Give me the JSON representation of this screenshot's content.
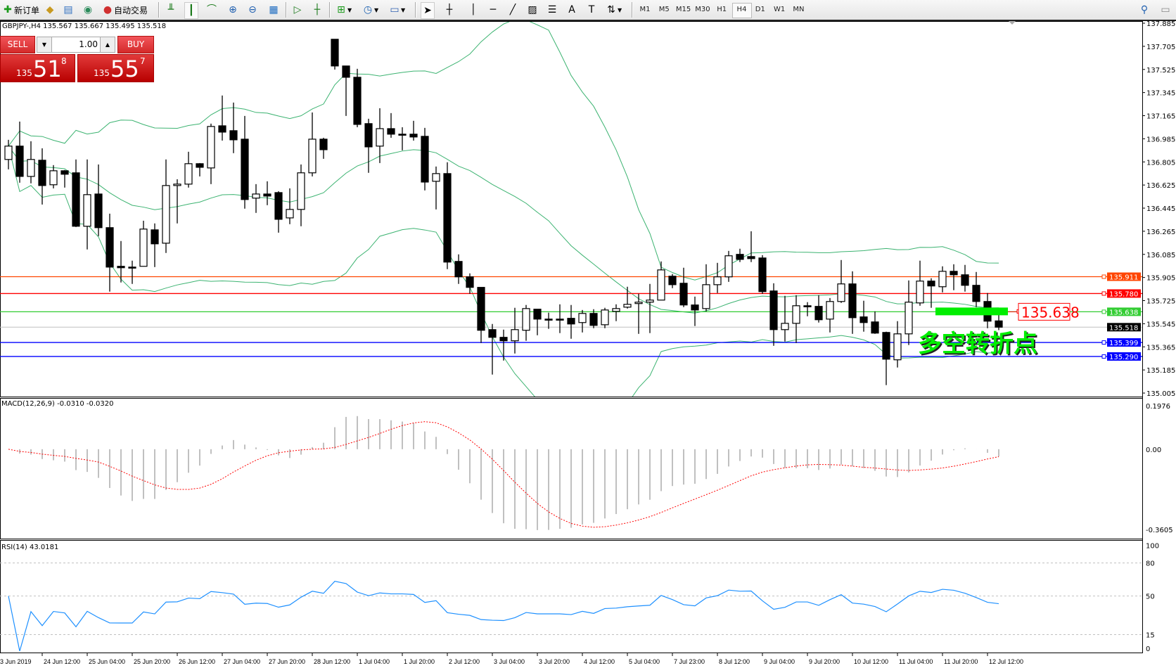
{
  "toolbar": {
    "new_order": "新订单",
    "auto_trading": "自动交易",
    "timeframes": [
      "M1",
      "M5",
      "M15",
      "M30",
      "H1",
      "H4",
      "D1",
      "W1",
      "MN"
    ],
    "active_timeframe": "H4"
  },
  "chart": {
    "symbol_header": "GBPJPY-,H4  135.567 135.667 135.495 135.518",
    "macd_label": "MACD(12,26,9) -0.0310 -0.0320",
    "rsi_label": "RSI(14) 43.0181",
    "annotation_text": "多空转折点",
    "annotation_price": "135.638",
    "annotation_color": "#00ee00"
  },
  "trade_panel": {
    "sell_label": "SELL",
    "buy_label": "BUY",
    "lot": "1.00",
    "sell_price": {
      "prefix": "135",
      "main": "51",
      "frac": "8"
    },
    "buy_price": {
      "prefix": "135",
      "main": "55",
      "frac": "7"
    }
  },
  "chart_data": {
    "type": "candlestick",
    "symbol": "GBPJPY-",
    "timeframe": "H4",
    "ylim": [
      135.005,
      137.885
    ],
    "price_ticks": [
      "137.885",
      "137.705",
      "137.525",
      "137.345",
      "137.165",
      "136.985",
      "136.805",
      "136.625",
      "136.445",
      "136.265",
      "136.085",
      "135.905",
      "135.725",
      "135.545",
      "135.365",
      "135.185",
      "135.005"
    ],
    "x_tick_labels": [
      "3 Jun 2019",
      "24 Jun 12:00",
      "25 Jun 04:00",
      "25 Jun 20:00",
      "26 Jun 12:00",
      "27 Jun 04:00",
      "27 Jun 20:00",
      "28 Jun 12:00",
      "1 Jul 04:00",
      "1 Jul 20:00",
      "2 Jul 12:00",
      "3 Jul 04:00",
      "3 Jul 20:00",
      "4 Jul 12:00",
      "5 Jul 04:00",
      "7 Jul 23:00",
      "8 Jul 12:00",
      "9 Jul 04:00",
      "9 Jul 20:00",
      "10 Jul 12:00",
      "11 Jul 04:00",
      "11 Jul 20:00",
      "12 Jul 12:00"
    ],
    "ohlc": [
      [
        136.824,
        136.977,
        136.747,
        136.928
      ],
      [
        136.928,
        137.119,
        136.643,
        136.692
      ],
      [
        136.692,
        136.966,
        136.638,
        136.824
      ],
      [
        136.818,
        136.911,
        136.473,
        136.621
      ],
      [
        136.627,
        136.78,
        136.599,
        136.736
      ],
      [
        136.736,
        136.742,
        136.605,
        136.709
      ],
      [
        136.72,
        136.824,
        136.298,
        136.304
      ],
      [
        136.304,
        136.824,
        136.123,
        136.55
      ],
      [
        136.555,
        136.785,
        136.227,
        136.293
      ],
      [
        136.293,
        136.402,
        135.795,
        135.986
      ],
      [
        135.992,
        136.189,
        135.866,
        135.981
      ],
      [
        135.986,
        136.036,
        135.855,
        135.981
      ],
      [
        135.992,
        136.347,
        135.992,
        136.282
      ],
      [
        136.276,
        136.326,
        135.986,
        136.167
      ],
      [
        136.172,
        136.824,
        136.096,
        136.621
      ],
      [
        136.621,
        136.67,
        136.326,
        136.632
      ],
      [
        136.632,
        136.884,
        136.605,
        136.791
      ],
      [
        136.791,
        136.796,
        136.692,
        136.763
      ],
      [
        136.758,
        137.103,
        136.632,
        137.081
      ],
      [
        137.086,
        137.322,
        136.971,
        137.037
      ],
      [
        137.048,
        137.267,
        136.873,
        136.977
      ],
      [
        136.982,
        137.163,
        136.441,
        136.512
      ],
      [
        136.523,
        136.632,
        136.408,
        136.555
      ],
      [
        136.555,
        136.654,
        136.468,
        136.539
      ],
      [
        136.566,
        136.577,
        136.254,
        136.358
      ],
      [
        136.369,
        136.599,
        136.32,
        136.435
      ],
      [
        136.435,
        136.785,
        136.304,
        136.72
      ],
      [
        136.72,
        137.19,
        136.692,
        136.982
      ],
      [
        136.982,
        136.993,
        136.829,
        136.9
      ],
      [
        137.76,
        137.76,
        137.524,
        137.552
      ],
      [
        137.552,
        137.552,
        137.163,
        137.464
      ],
      [
        137.464,
        137.53,
        137.075,
        137.097
      ],
      [
        137.103,
        137.141,
        136.72,
        136.922
      ],
      [
        136.928,
        137.223,
        136.796,
        137.064
      ],
      [
        137.064,
        137.185,
        136.993,
        137.021
      ],
      [
        137.021,
        137.075,
        136.895,
        137.021
      ],
      [
        137.021,
        137.125,
        136.971,
        136.999
      ],
      [
        137.004,
        137.07,
        136.583,
        136.648
      ],
      [
        136.654,
        136.769,
        136.435,
        136.714
      ],
      [
        136.714,
        136.802,
        135.97,
        136.025
      ],
      [
        136.03,
        136.085,
        135.855,
        135.91
      ],
      [
        135.91,
        135.937,
        135.778,
        135.828
      ],
      [
        135.828,
        135.828,
        135.395,
        135.494
      ],
      [
        135.499,
        135.543,
        135.149,
        135.439
      ],
      [
        135.439,
        135.499,
        135.258,
        135.412
      ],
      [
        135.412,
        135.669,
        135.313,
        135.499
      ],
      [
        135.494,
        135.691,
        135.412,
        135.663
      ],
      [
        135.658,
        135.658,
        135.455,
        135.581
      ],
      [
        135.581,
        135.631,
        135.505,
        135.581
      ],
      [
        135.581,
        135.696,
        135.472,
        135.581
      ],
      [
        135.587,
        135.691,
        135.428,
        135.543
      ],
      [
        135.554,
        135.652,
        135.477,
        135.625
      ],
      [
        135.625,
        135.658,
        135.51,
        135.532
      ],
      [
        135.537,
        135.669,
        135.51,
        135.652
      ],
      [
        135.641,
        135.696,
        135.565,
        135.663
      ],
      [
        135.674,
        135.833,
        135.663,
        135.696
      ],
      [
        135.702,
        135.778,
        135.466,
        135.713
      ],
      [
        135.713,
        135.855,
        135.472,
        135.729
      ],
      [
        135.729,
        136.03,
        135.729,
        135.964
      ],
      [
        135.915,
        135.932,
        135.822,
        135.849
      ],
      [
        135.86,
        135.981,
        135.674,
        135.691
      ],
      [
        135.691,
        135.756,
        135.527,
        135.652
      ],
      [
        135.663,
        136.008,
        135.641,
        135.849
      ],
      [
        135.849,
        136.019,
        135.784,
        135.91
      ],
      [
        135.91,
        136.112,
        135.871,
        136.074
      ],
      [
        136.085,
        136.129,
        136.025,
        136.046
      ],
      [
        136.068,
        136.265,
        136.025,
        136.052
      ],
      [
        136.057,
        136.079,
        135.778,
        135.795
      ],
      [
        135.8,
        135.86,
        135.373,
        135.499
      ],
      [
        135.499,
        135.762,
        135.406,
        135.548
      ],
      [
        135.548,
        135.767,
        135.395,
        135.685
      ],
      [
        135.685,
        135.713,
        135.603,
        135.685
      ],
      [
        135.68,
        135.767,
        135.554,
        135.576
      ],
      [
        135.581,
        135.745,
        135.477,
        135.718
      ],
      [
        135.718,
        136.041,
        135.707,
        135.855
      ],
      [
        135.855,
        135.953,
        135.466,
        135.592
      ],
      [
        135.598,
        135.724,
        135.483,
        135.554
      ],
      [
        135.559,
        135.641,
        135.466,
        135.472
      ],
      [
        135.477,
        135.483,
        135.067,
        135.269
      ],
      [
        135.264,
        135.565,
        135.204,
        135.466
      ],
      [
        135.466,
        135.882,
        135.379,
        135.713
      ],
      [
        135.707,
        136.036,
        135.685,
        135.877
      ],
      [
        135.877,
        135.899,
        135.669,
        135.839
      ],
      [
        135.833,
        135.992,
        135.789,
        135.953
      ],
      [
        135.953,
        136.008,
        135.806,
        135.926
      ],
      [
        135.926,
        136.003,
        135.795,
        135.844
      ],
      [
        135.844,
        135.948,
        135.674,
        135.718
      ],
      [
        135.718,
        135.784,
        135.51,
        135.565
      ],
      [
        135.567,
        135.667,
        135.495,
        135.518
      ]
    ],
    "levels": [
      {
        "price": "135.911",
        "color": "#ff4500"
      },
      {
        "price": "135.780",
        "color": "#ff0000"
      },
      {
        "price": "135.638",
        "color": "#32cd32"
      },
      {
        "price": "135.399",
        "color": "#0000ff"
      },
      {
        "price": "135.290",
        "color": "#0000ff"
      }
    ],
    "bid": {
      "price": "135.518",
      "color": "#c0c0c0"
    },
    "bollinger": {
      "period": 20,
      "deviation": 2,
      "color": "#3cb371"
    },
    "macd": {
      "fast": 12,
      "slow": 26,
      "signal": 9,
      "ylim": [
        -0.3605,
        0.1976
      ],
      "axis_labels": [
        "0.1976",
        "0.00",
        "-0.3605"
      ],
      "histogram_color": "#c0c0c0",
      "signal_color": "#ff0000"
    },
    "rsi": {
      "period": 14,
      "levels": [
        80,
        50,
        15
      ],
      "axis_labels": [
        "100",
        "80",
        "50",
        "15",
        "0"
      ],
      "color": "#1e90ff"
    }
  }
}
